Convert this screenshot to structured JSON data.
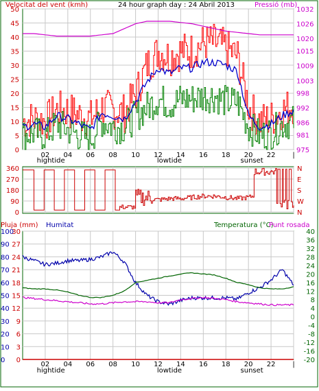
{
  "header": {
    "wind_label": "Velocitat del vent (kmh)",
    "title": "24 hour graph day : 24 Abril 2013",
    "pressure_label": "Pressió (mb)"
  },
  "x_axis": {
    "hours": [
      "02",
      "04",
      "06",
      "08",
      "10",
      "12",
      "14",
      "16",
      "18",
      "20",
      "22",
      "|"
    ],
    "markers": [
      {
        "label": "hightide",
        "hour": 2.5
      },
      {
        "label": "lowtide",
        "hour": 13.0
      },
      {
        "label": "sunset",
        "hour": 20.3
      }
    ]
  },
  "panel_bottom_labels": {
    "rain_label": "Pluja (mm)",
    "humidity_label": "Humitat",
    "temp_label": "Temperatura (°C)",
    "dew_label": "Punt rosada"
  },
  "colors": {
    "frame": "#006400",
    "gust": "#ff0000",
    "wind_avg": "#0000cc",
    "wind": "#008000",
    "pressure": "#cc00cc",
    "direction": "#cc0000",
    "humidity": "#0000aa",
    "temperature": "#006400",
    "dewpoint": "#cc00cc",
    "rain": "#cc0000",
    "grid": "#c8c8c8"
  },
  "chart_data": [
    {
      "type": "line",
      "title": "24 hour graph day : 24 Abril 2013",
      "x": [
        0,
        1,
        2,
        3,
        4,
        5,
        6,
        7,
        8,
        9,
        10,
        11,
        12,
        13,
        14,
        15,
        16,
        17,
        18,
        19,
        20,
        21,
        22,
        23,
        24
      ],
      "y_left": {
        "label": "Velocitat del vent (kmh)",
        "ticks": [
          0,
          5,
          10,
          15,
          20,
          25,
          30,
          35,
          40,
          45,
          50
        ],
        "ylim": [
          0,
          50
        ]
      },
      "y_right": {
        "label": "Pressió (mb)",
        "ticks": [
          975,
          981,
          986,
          992,
          998,
          1003,
          1009,
          1015,
          1020,
          1026,
          1032
        ],
        "ylim": [
          975,
          1032
        ]
      },
      "series": [
        {
          "name": "gust",
          "values": [
            10,
            11,
            10,
            14,
            14,
            12,
            11,
            15,
            14,
            13,
            20,
            30,
            35,
            33,
            35,
            35,
            38,
            38,
            36,
            33,
            15,
            10,
            11,
            14,
            16
          ]
        },
        {
          "name": "avg",
          "values": [
            8,
            9,
            8,
            12,
            11,
            9,
            7,
            13,
            12,
            11,
            17,
            24,
            29,
            27,
            29,
            29,
            31,
            31,
            30,
            28,
            12,
            8,
            9,
            12,
            14
          ]
        },
        {
          "name": "wind",
          "values": [
            5,
            6,
            5,
            9,
            7,
            5,
            4,
            10,
            8,
            8,
            12,
            15,
            18,
            16,
            18,
            18,
            19,
            19,
            17,
            17,
            8,
            5,
            6,
            9,
            10
          ]
        },
        {
          "name": "pressure",
          "values": [
            1022,
            1022,
            1021.5,
            1021,
            1021,
            1021,
            1021,
            1021.5,
            1022,
            1024,
            1026,
            1027,
            1027,
            1027,
            1026.5,
            1026,
            1025,
            1024,
            1023,
            1022.5,
            1022,
            1021.5,
            1021.5,
            1021.5,
            1021.5
          ]
        }
      ]
    },
    {
      "type": "line",
      "y_left": {
        "ticks": [
          0,
          90,
          180,
          270,
          360
        ],
        "ylim": [
          0,
          360
        ]
      },
      "y_right": {
        "ticks": [
          "N",
          "W",
          "S",
          "E",
          "N"
        ]
      },
      "series": [
        {
          "name": "direction",
          "values": [
            350,
            350,
            20,
            340,
            350,
            20,
            350,
            340,
            30,
            40,
            90,
            110,
            100,
            110,
            110,
            120,
            130,
            130,
            120,
            110,
            120,
            150,
            340,
            350,
            140
          ]
        }
      ]
    },
    {
      "type": "line",
      "y_left_rain": {
        "label": "Pluja (mm)",
        "ticks": [
          0,
          3,
          6,
          9,
          12,
          15,
          18,
          21,
          24,
          27,
          30
        ],
        "ylim": [
          0,
          30
        ]
      },
      "y_left_hum": {
        "label": "Humitat",
        "ticks": [
          0,
          10,
          20,
          30,
          40,
          50,
          60,
          70,
          80,
          90,
          100
        ],
        "ylim": [
          0,
          100
        ]
      },
      "y_right": {
        "label": "Temperatura (°C)",
        "ticks": [
          -20,
          -16,
          -12,
          -8,
          -4,
          0,
          4,
          8,
          12,
          16,
          20,
          24,
          28,
          32,
          36,
          40
        ],
        "ylim": [
          -20,
          40
        ]
      },
      "series": [
        {
          "name": "Humitat",
          "axis": "humidity",
          "values": [
            80,
            77,
            74,
            75,
            77,
            77,
            78,
            80,
            84,
            76,
            60,
            50,
            45,
            43,
            46,
            48,
            48,
            48,
            48,
            47,
            52,
            56,
            62,
            70,
            58
          ]
        },
        {
          "name": "Temperatura",
          "axis": "temperature",
          "values": [
            13.5,
            13,
            13,
            12.5,
            11.5,
            10,
            9,
            9,
            10,
            12,
            16,
            17,
            18,
            19,
            20,
            20.5,
            20,
            19.5,
            18,
            16,
            15,
            13.5,
            13,
            13,
            14
          ]
        },
        {
          "name": "Punt rosada",
          "axis": "temperature",
          "values": [
            9,
            8.5,
            8,
            7.5,
            7,
            6.5,
            6,
            6,
            6.5,
            7,
            7,
            7,
            6.5,
            6.5,
            8,
            8.5,
            9,
            8.5,
            8,
            7,
            6.5,
            6,
            5.5,
            5.5,
            5.5
          ]
        },
        {
          "name": "Pluja",
          "axis": "rain",
          "values": [
            0,
            0,
            0,
            0,
            0,
            0,
            0,
            0,
            0,
            0,
            0,
            0,
            0,
            0,
            0,
            0,
            0,
            0,
            0,
            0,
            0,
            0,
            0,
            0,
            0
          ]
        }
      ]
    }
  ]
}
